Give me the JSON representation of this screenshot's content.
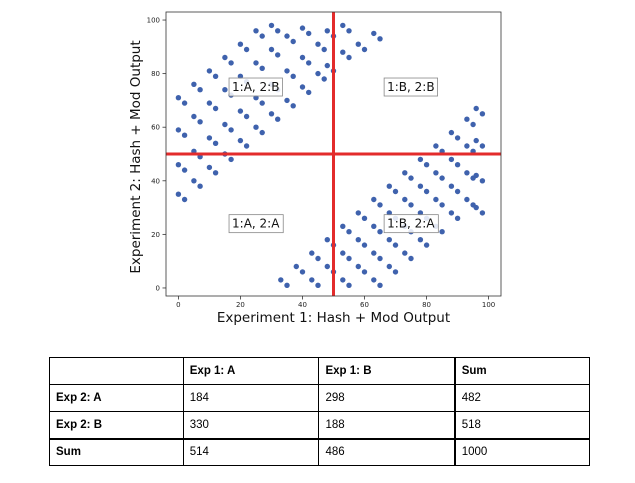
{
  "chart_data": {
    "type": "scatter",
    "xlabel": "Experiment 1: Hash + Mod Output",
    "ylabel": "Experiment 2: Hash + Mod Output",
    "xlim": [
      -4,
      104
    ],
    "ylim": [
      -3,
      103
    ],
    "xticks": [
      0,
      20,
      40,
      60,
      80,
      100
    ],
    "yticks": [
      0,
      20,
      40,
      60,
      80,
      100
    ],
    "threshold_lines": {
      "x": 50,
      "y": 50,
      "color": "#e32b2b"
    },
    "marker_color": "#3f62ad",
    "grid": false,
    "annotations": [
      {
        "text": "1:A, 2:B",
        "x": 16,
        "y": 75
      },
      {
        "text": "1:B, 2:B",
        "x": 66,
        "y": 75
      },
      {
        "text": "1:A, 2:A",
        "x": 16,
        "y": 24
      },
      {
        "text": "1:B, 2:A",
        "x": 66,
        "y": 24
      }
    ],
    "series": [
      {
        "points": [
          [
            0,
            35
          ],
          [
            2,
            33
          ],
          [
            0,
            46
          ],
          [
            2,
            44
          ],
          [
            0,
            59
          ],
          [
            2,
            57
          ],
          [
            0,
            71
          ],
          [
            2,
            69
          ],
          [
            5,
            40
          ],
          [
            7,
            38
          ],
          [
            5,
            51
          ],
          [
            7,
            49
          ],
          [
            5,
            64
          ],
          [
            7,
            62
          ],
          [
            5,
            76
          ],
          [
            7,
            74
          ],
          [
            10,
            45
          ],
          [
            12,
            43
          ],
          [
            10,
            56
          ],
          [
            12,
            54
          ],
          [
            10,
            69
          ],
          [
            12,
            67
          ],
          [
            10,
            81
          ],
          [
            12,
            79
          ],
          [
            15,
            50
          ],
          [
            17,
            48
          ],
          [
            15,
            61
          ],
          [
            17,
            59
          ],
          [
            15,
            74
          ],
          [
            17,
            72
          ],
          [
            15,
            86
          ],
          [
            17,
            84
          ],
          [
            20,
            55
          ],
          [
            22,
            53
          ],
          [
            20,
            66
          ],
          [
            22,
            64
          ],
          [
            20,
            79
          ],
          [
            22,
            77
          ],
          [
            20,
            91
          ],
          [
            22,
            89
          ],
          [
            25,
            60
          ],
          [
            27,
            58
          ],
          [
            25,
            71
          ],
          [
            27,
            69
          ],
          [
            25,
            84
          ],
          [
            27,
            82
          ],
          [
            25,
            96
          ],
          [
            27,
            94
          ],
          [
            30,
            65
          ],
          [
            32,
            63
          ],
          [
            30,
            76
          ],
          [
            32,
            74
          ],
          [
            30,
            89
          ],
          [
            32,
            87
          ],
          [
            30,
            98
          ],
          [
            32,
            96
          ],
          [
            35,
            70
          ],
          [
            37,
            68
          ],
          [
            35,
            81
          ],
          [
            37,
            79
          ],
          [
            35,
            94
          ],
          [
            37,
            92
          ],
          [
            40,
            75
          ],
          [
            42,
            73
          ],
          [
            40,
            86
          ],
          [
            42,
            84
          ],
          [
            40,
            97
          ],
          [
            42,
            95
          ],
          [
            45,
            80
          ],
          [
            47,
            78
          ],
          [
            45,
            91
          ],
          [
            47,
            89
          ],
          [
            48,
            83
          ],
          [
            50,
            81
          ],
          [
            48,
            96
          ],
          [
            50,
            94
          ],
          [
            53,
            88
          ],
          [
            55,
            86
          ],
          [
            53,
            98
          ],
          [
            55,
            96
          ],
          [
            58,
            91
          ],
          [
            60,
            89
          ],
          [
            63,
            95
          ],
          [
            65,
            93
          ],
          [
            33,
            3
          ],
          [
            35,
            1
          ],
          [
            38,
            8
          ],
          [
            40,
            6
          ],
          [
            43,
            13
          ],
          [
            45,
            11
          ],
          [
            43,
            3
          ],
          [
            45,
            1
          ],
          [
            48,
            18
          ],
          [
            50,
            16
          ],
          [
            48,
            8
          ],
          [
            50,
            6
          ],
          [
            53,
            23
          ],
          [
            55,
            21
          ],
          [
            53,
            13
          ],
          [
            55,
            11
          ],
          [
            53,
            3
          ],
          [
            55,
            1
          ],
          [
            58,
            28
          ],
          [
            60,
            26
          ],
          [
            58,
            18
          ],
          [
            60,
            16
          ],
          [
            58,
            8
          ],
          [
            60,
            6
          ],
          [
            63,
            33
          ],
          [
            65,
            31
          ],
          [
            63,
            23
          ],
          [
            65,
            21
          ],
          [
            63,
            13
          ],
          [
            65,
            11
          ],
          [
            63,
            3
          ],
          [
            65,
            1
          ],
          [
            68,
            38
          ],
          [
            70,
            36
          ],
          [
            68,
            28
          ],
          [
            70,
            26
          ],
          [
            68,
            18
          ],
          [
            70,
            16
          ],
          [
            68,
            8
          ],
          [
            70,
            6
          ],
          [
            73,
            43
          ],
          [
            75,
            41
          ],
          [
            73,
            33
          ],
          [
            75,
            31
          ],
          [
            73,
            23
          ],
          [
            75,
            21
          ],
          [
            73,
            13
          ],
          [
            75,
            11
          ],
          [
            78,
            48
          ],
          [
            80,
            46
          ],
          [
            78,
            38
          ],
          [
            80,
            36
          ],
          [
            78,
            28
          ],
          [
            80,
            26
          ],
          [
            78,
            18
          ],
          [
            80,
            16
          ],
          [
            83,
            53
          ],
          [
            85,
            51
          ],
          [
            83,
            43
          ],
          [
            85,
            41
          ],
          [
            83,
            33
          ],
          [
            85,
            31
          ],
          [
            83,
            23
          ],
          [
            85,
            21
          ],
          [
            88,
            58
          ],
          [
            90,
            56
          ],
          [
            88,
            48
          ],
          [
            90,
            46
          ],
          [
            88,
            38
          ],
          [
            90,
            36
          ],
          [
            88,
            28
          ],
          [
            90,
            26
          ],
          [
            93,
            63
          ],
          [
            95,
            61
          ],
          [
            93,
            53
          ],
          [
            95,
            51
          ],
          [
            93,
            43
          ],
          [
            95,
            41
          ],
          [
            93,
            33
          ],
          [
            95,
            31
          ],
          [
            96,
            67
          ],
          [
            98,
            65
          ],
          [
            96,
            55
          ],
          [
            98,
            53
          ],
          [
            96,
            42
          ],
          [
            98,
            40
          ],
          [
            96,
            30
          ],
          [
            98,
            28
          ]
        ]
      }
    ]
  },
  "table": {
    "header": [
      "",
      "Exp 1: A",
      "Exp 1: B",
      "Sum"
    ],
    "rows": [
      [
        "Exp 2: A",
        "184",
        "298",
        "482"
      ],
      [
        "Exp 2: B",
        "330",
        "188",
        "518"
      ],
      [
        "Sum",
        "514",
        "486",
        "1000"
      ]
    ]
  }
}
